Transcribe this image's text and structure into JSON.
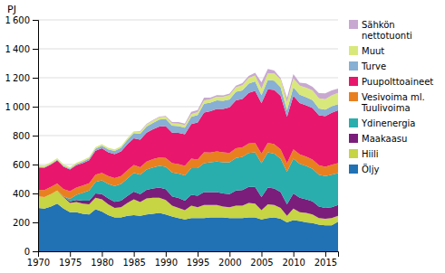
{
  "chart_data": {
    "type": "area",
    "stacked": true,
    "y_label": "PJ",
    "x": [
      1970,
      1971,
      1972,
      1973,
      1974,
      1975,
      1976,
      1977,
      1978,
      1979,
      1980,
      1981,
      1982,
      1983,
      1984,
      1985,
      1986,
      1987,
      1988,
      1989,
      1990,
      1991,
      1992,
      1993,
      1994,
      1995,
      1996,
      1997,
      1998,
      1999,
      2000,
      2001,
      2002,
      2003,
      2004,
      2005,
      2006,
      2007,
      2008,
      2009,
      2010,
      2011,
      2012,
      2013,
      2014,
      2015,
      2016,
      2017
    ],
    "xlim": [
      1970,
      2017
    ],
    "xticks": [
      1970,
      1975,
      1980,
      1985,
      1990,
      1995,
      2000,
      2005,
      2010,
      2015
    ],
    "ylim": [
      0,
      1600
    ],
    "yticks": [
      0,
      200,
      400,
      600,
      800,
      {
        "value": 1000,
        "label": "1 000"
      },
      {
        "value": 1200,
        "label": "1 200"
      },
      {
        "value": 1400,
        "label": "1 400"
      },
      {
        "value": 1600,
        "label": "1 600"
      }
    ],
    "grid": true,
    "legend": "right",
    "series": [
      {
        "name": "Öljy",
        "color": "#2171b5",
        "values": [
          300,
          295,
          310,
          330,
          295,
          270,
          270,
          260,
          255,
          290,
          275,
          250,
          235,
          235,
          245,
          250,
          245,
          255,
          260,
          265,
          255,
          240,
          230,
          220,
          230,
          230,
          230,
          235,
          235,
          235,
          230,
          230,
          230,
          235,
          235,
          220,
          230,
          235,
          225,
          200,
          215,
          210,
          200,
          195,
          185,
          180,
          180,
          205
        ]
      },
      {
        "name": "Hiili",
        "color": "#c7d444",
        "values": [
          80,
          80,
          85,
          90,
          80,
          65,
          70,
          70,
          70,
          80,
          85,
          75,
          65,
          70,
          90,
          110,
          95,
          110,
          110,
          105,
          100,
          75,
          70,
          65,
          85,
          75,
          90,
          85,
          85,
          75,
          75,
          85,
          85,
          100,
          95,
          65,
          95,
          85,
          75,
          45,
          80,
          60,
          65,
          60,
          45,
          45,
          50,
          40
        ]
      },
      {
        "name": "Maakaasu",
        "color": "#7b1d7b",
        "values": [
          0,
          0,
          0,
          0,
          5,
          10,
          15,
          20,
          25,
          30,
          35,
          40,
          42,
          45,
          48,
          52,
          55,
          60,
          65,
          70,
          75,
          65,
          68,
          65,
          75,
          80,
          90,
          90,
          90,
          90,
          90,
          105,
          108,
          110,
          115,
          90,
          115,
          115,
          110,
          80,
          105,
          100,
          95,
          90,
          80,
          75,
          75,
          75
        ]
      },
      {
        "name": "Ydinenergia",
        "color": "#2aadad",
        "values": [
          0,
          0,
          0,
          0,
          0,
          18,
          35,
          55,
          70,
          80,
          95,
          100,
          110,
          115,
          120,
          130,
          135,
          140,
          145,
          150,
          155,
          165,
          170,
          175,
          185,
          190,
          200,
          205,
          210,
          215,
          220,
          225,
          230,
          235,
          240,
          235,
          245,
          240,
          230,
          225,
          240,
          235,
          230,
          225,
          220,
          220,
          225,
          220
        ]
      },
      {
        "name": "Vesivoima ml.\nTuulivoima",
        "color": "#e88020",
        "values": [
          45,
          48,
          50,
          48,
          50,
          52,
          50,
          50,
          50,
          50,
          52,
          55,
          55,
          55,
          58,
          55,
          52,
          55,
          58,
          58,
          60,
          65,
          65,
          65,
          65,
          60,
          75,
          68,
          70,
          70,
          65,
          68,
          65,
          65,
          65,
          65,
          65,
          65,
          65,
          60,
          65,
          65,
          65,
          65,
          65,
          65,
          68,
          70
        ]
      },
      {
        "name": "Puupolttoaineet",
        "color": "#e8166c",
        "values": [
          155,
          155,
          155,
          160,
          155,
          150,
          155,
          155,
          160,
          165,
          170,
          165,
          165,
          170,
          180,
          185,
          190,
          200,
          205,
          215,
          220,
          210,
          215,
          220,
          240,
          255,
          275,
          285,
          295,
          300,
          315,
          330,
          335,
          350,
          360,
          350,
          370,
          375,
          370,
          320,
          370,
          355,
          355,
          355,
          345,
          350,
          360,
          365
        ]
      },
      {
        "name": "Turve",
        "color": "#88afd4",
        "values": [
          5,
          5,
          5,
          6,
          6,
          7,
          8,
          10,
          12,
          15,
          18,
          20,
          22,
          25,
          30,
          35,
          40,
          42,
          45,
          48,
          50,
          48,
          48,
          45,
          50,
          52,
          60,
          60,
          58,
          55,
          55,
          60,
          60,
          65,
          65,
          55,
          65,
          65,
          60,
          45,
          60,
          58,
          55,
          55,
          48,
          45,
          45,
          42
        ]
      },
      {
        "name": "Muut",
        "color": "#d9e87a",
        "values": [
          10,
          10,
          10,
          10,
          10,
          10,
          10,
          10,
          10,
          11,
          11,
          11,
          11,
          12,
          12,
          13,
          14,
          14,
          15,
          15,
          16,
          16,
          17,
          18,
          19,
          20,
          22,
          24,
          26,
          28,
          30,
          32,
          35,
          38,
          40,
          43,
          46,
          50,
          54,
          56,
          60,
          63,
          66,
          68,
          70,
          72,
          75,
          78
        ]
      },
      {
        "name": "Sähkön\nnettotuonti",
        "color": "#c8a8d0",
        "values": [
          0,
          0,
          0,
          0,
          0,
          0,
          0,
          0,
          0,
          0,
          0,
          0,
          0,
          0,
          0,
          0,
          5,
          5,
          5,
          5,
          5,
          10,
          10,
          10,
          15,
          15,
          20,
          10,
          10,
          10,
          10,
          10,
          15,
          15,
          20,
          45,
          30,
          20,
          10,
          30,
          30,
          20,
          30,
          25,
          35,
          40,
          35,
          30
        ]
      }
    ]
  }
}
